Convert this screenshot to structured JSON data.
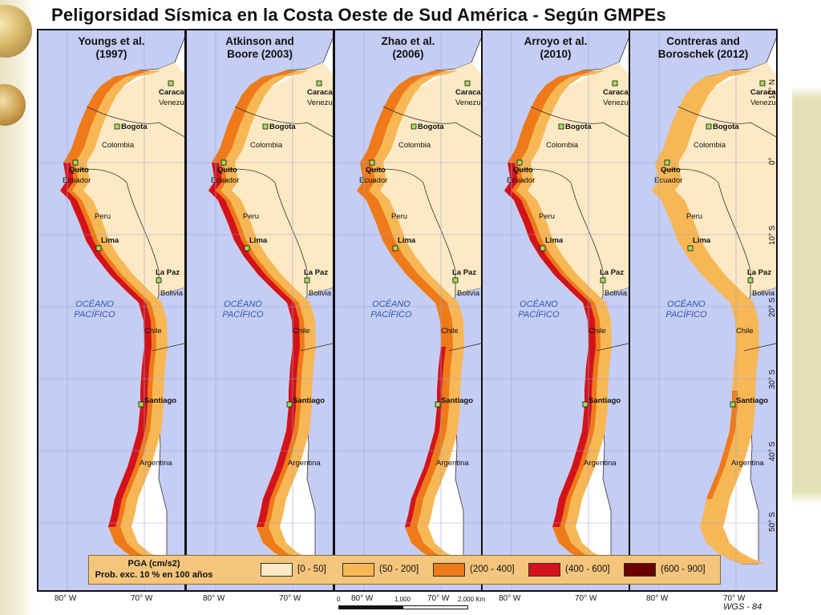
{
  "title": "Peligorsidad Sísmica en la Costa Oeste de Sud América - Según GMPEs",
  "panels": [
    {
      "title_line1": "Youngs et al.",
      "title_line2": "(1997)",
      "hazard_level": 3
    },
    {
      "title_line1": "Atkinson and",
      "title_line2": "Boore (2003)",
      "hazard_level": 3
    },
    {
      "title_line1": "Zhao et al.",
      "title_line2": "(2006)",
      "hazard_level": 2
    },
    {
      "title_line1": "Arroyo et al.",
      "title_line2": "(2010)",
      "hazard_level": 3
    },
    {
      "title_line1": "Contreras and",
      "title_line2": "Boroschek (2012)",
      "hazard_level": 1
    }
  ],
  "map_labels": {
    "caracas": "Caracas",
    "venezuela": "Venezuela",
    "bogota": "Bogota",
    "colombia": "Colombia",
    "quito": "Quito",
    "ecuador": "Ecuador",
    "peru": "Peru",
    "lima": "Lima",
    "la_paz": "La Paz",
    "bolivia": "Bolivia",
    "ocean_line1": "OCÉANO",
    "ocean_line2": "PACÍFICO",
    "chile": "Chile",
    "santiago": "Santiago",
    "argentina": "Argentina"
  },
  "legend": {
    "title_line1": "PGA (cm/s2)",
    "title_line2": "Prob. exc. 10 % en 100 años",
    "items": [
      {
        "label": "[0 - 50]",
        "color": "#fde9c3"
      },
      {
        "label": "(50 - 200]",
        "color": "#f7b755"
      },
      {
        "label": "(200 - 400]",
        "color": "#ee7a1a"
      },
      {
        "label": "(400 - 600]",
        "color": "#d4121b"
      },
      {
        "label": "(600 - 900]",
        "color": "#6b0000"
      }
    ]
  },
  "longitude_labels": [
    "80° W",
    "70° W"
  ],
  "latitude_labels": [
    "10° N",
    "0°",
    "10° S",
    "20° S",
    "30° S",
    "40° S",
    "50° S"
  ],
  "scale_bar": {
    "zero": "0",
    "mid": "1,000",
    "end": "2,000 Km"
  },
  "datum": "WGS - 84",
  "colors": {
    "ocean": "#c5cdf4",
    "land": "#ffffff",
    "border": "#111111"
  }
}
